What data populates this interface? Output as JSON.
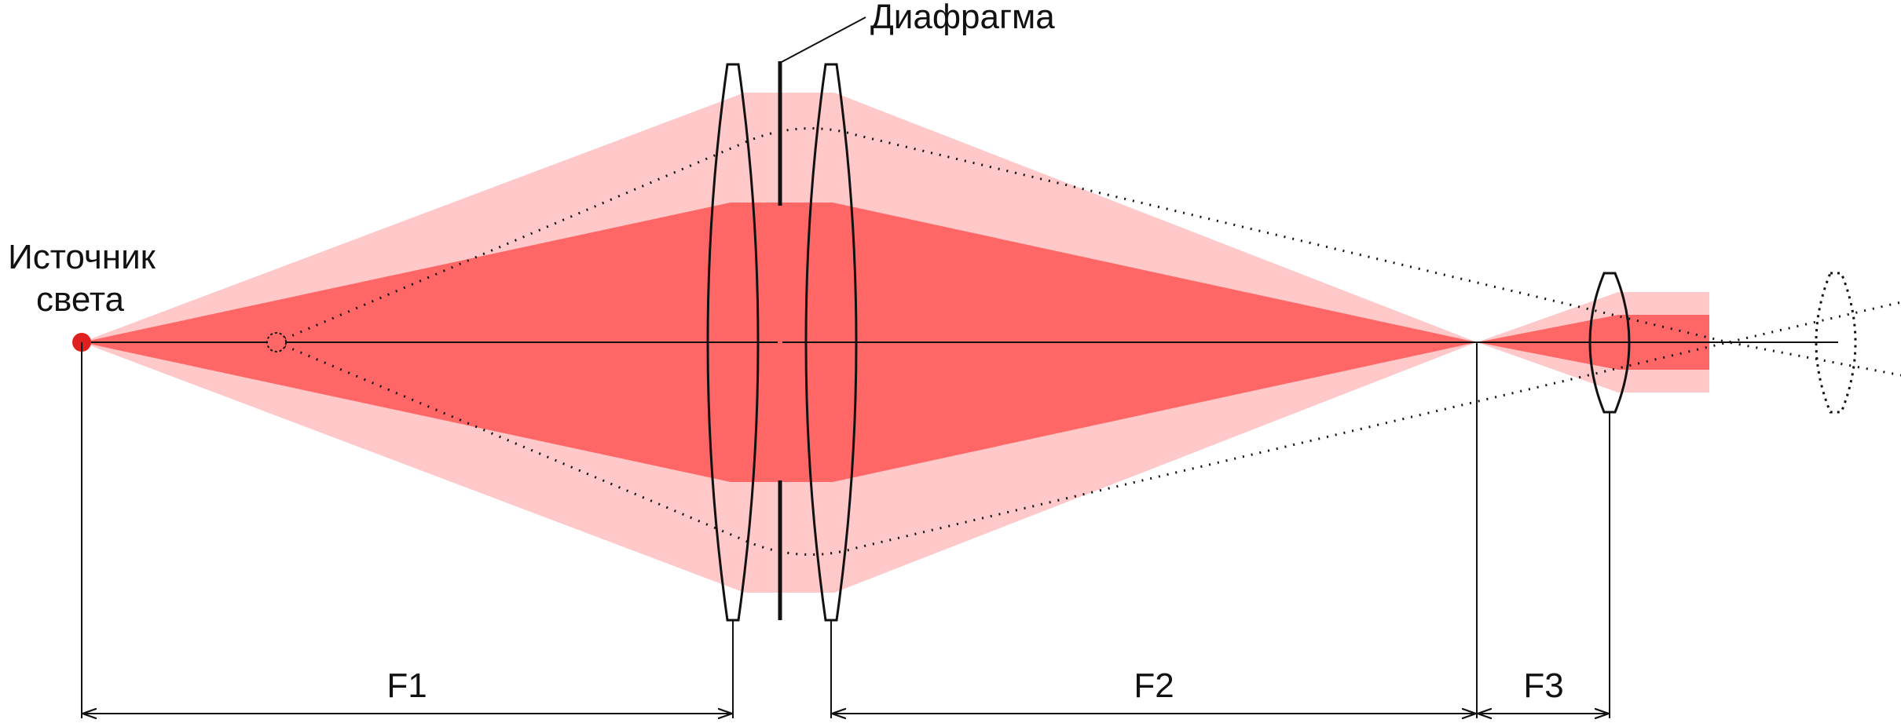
{
  "labels": {
    "source_line1": "Источник",
    "source_line2": "света",
    "aperture": "Диафрагма",
    "f1": "F1",
    "f2": "F2",
    "f3": "F3"
  },
  "colors": {
    "outer_beam": "#ffc8c9",
    "inner_beam": "#ff6767",
    "source_dot": "#e0201f",
    "ink": "#111111"
  },
  "components": [
    "source-dot",
    "virtual-source",
    "lens-1",
    "aperture",
    "lens-2",
    "focus-point",
    "lens-3",
    "lens-3-alternate"
  ]
}
